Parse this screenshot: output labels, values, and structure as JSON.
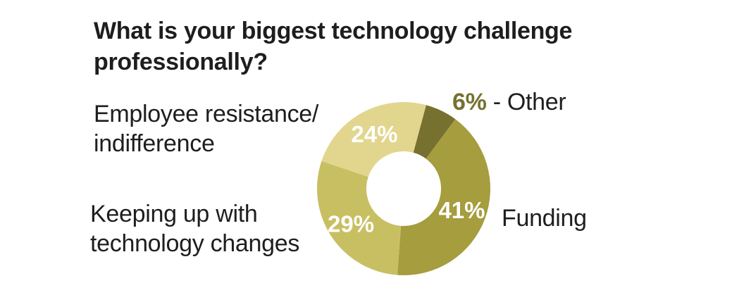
{
  "title": "What is your biggest technology challenge professionally?",
  "labels": {
    "employee": "Employee resistance/ indifference",
    "keeping": "Keeping up with technology changes",
    "funding": "Funding",
    "other_pct": "6%",
    "other_text": " - Other"
  },
  "chart_data": {
    "type": "pie",
    "title": "What is your biggest technology challenge professionally?",
    "categories": [
      "Other",
      "Funding",
      "Keeping up with technology changes",
      "Employee resistance/ indifference"
    ],
    "values": [
      6,
      41,
      29,
      24
    ],
    "labels": [
      "6%",
      "41%",
      "29%",
      "24%"
    ],
    "colors": [
      "#76712f",
      "#a59d3e",
      "#c8bf63",
      "#e2d68e"
    ],
    "donut": true
  }
}
